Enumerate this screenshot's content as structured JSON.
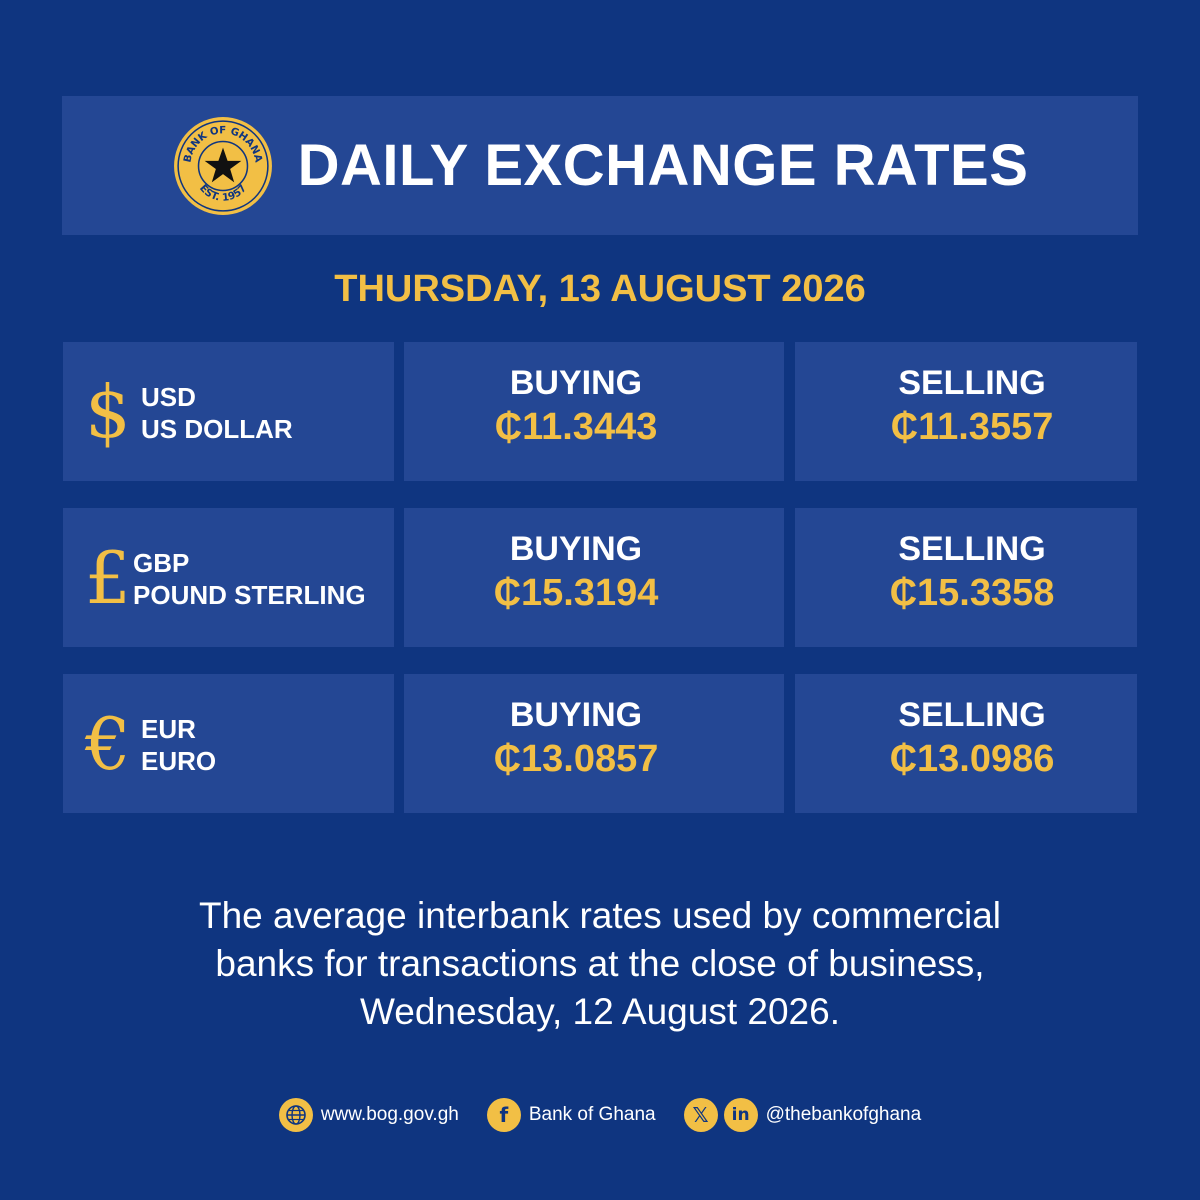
{
  "header": {
    "title": "DAILY EXCHANGE RATES",
    "logo": {
      "top_text": "BANK OF GHANA",
      "bottom_text": "EST. 1957",
      "icon": "black-star-icon"
    }
  },
  "date": "THURSDAY, 13 AUGUST 2026",
  "currency_symbol": "₵",
  "rates": [
    {
      "symbol": "$",
      "code": "USD",
      "name": "US DOLLAR",
      "buying_label": "BUYING",
      "buying": "₵11.3443",
      "selling_label": "SELLING",
      "selling": "₵11.3557"
    },
    {
      "symbol": "£",
      "code": "GBP",
      "name": "POUND STERLING",
      "buying_label": "BUYING",
      "buying": "₵15.3194",
      "selling_label": "SELLING",
      "selling": "₵15.3358"
    },
    {
      "symbol": "€",
      "code": "EUR",
      "name": "EURO",
      "buying_label": "BUYING",
      "buying": "₵13.0857",
      "selling_label": "SELLING",
      "selling": "₵13.0986"
    }
  ],
  "footnote": {
    "line1": "The average interbank rates used by commercial",
    "line2": "banks for transactions at the close of business,",
    "line3": "Wednesday, 12 August 2026."
  },
  "footer": {
    "website": "www.bog.gov.gh",
    "facebook": "Bank of Ghana",
    "handle": "@thebankofghana",
    "icons": [
      "globe-icon",
      "facebook-icon",
      "x-icon",
      "linkedin-icon"
    ]
  },
  "colors": {
    "background": "#0f3580",
    "panel": "#244794",
    "accent": "#f2bf45",
    "text": "#ffffff"
  }
}
